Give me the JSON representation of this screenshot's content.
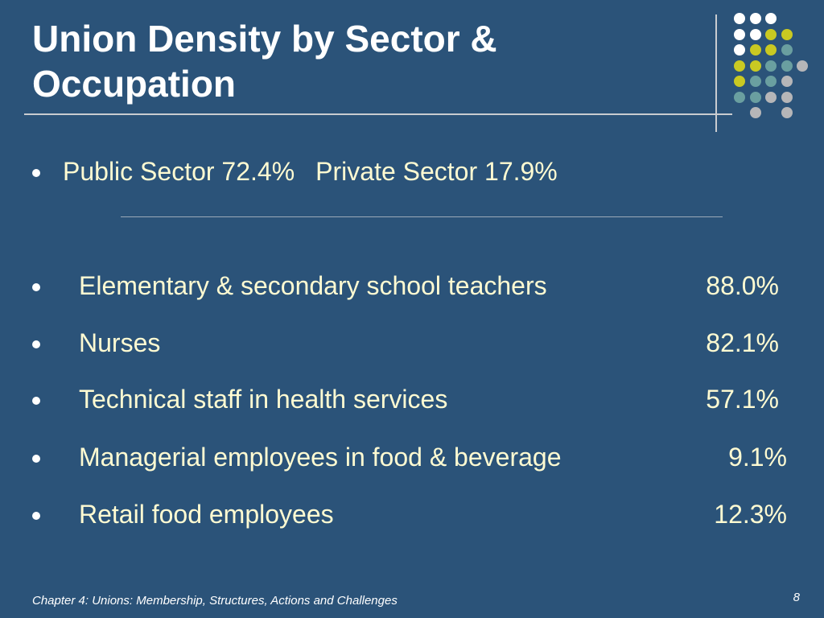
{
  "slide": {
    "title_line1": "Union Density by Sector &",
    "title_line2": "Occupation",
    "sector": {
      "public": "Public Sector 72.4%",
      "private": "Private Sector 17.9%"
    },
    "occupations": [
      {
        "label": "Elementary & secondary school teachers",
        "value": "88.0%"
      },
      {
        "label": "Nurses",
        "value": "82.1%"
      },
      {
        "label": "Technical staff in health services",
        "value": "57.1%"
      },
      {
        "label": "Managerial employees in food & beverage",
        "value": "9.1%"
      },
      {
        "label": "Retail food employees",
        "value": "12.3%"
      }
    ],
    "footer": "Chapter 4: Unions: Membership, Structures, Actions and Challenges",
    "page_number": "8"
  },
  "colors": {
    "background": "#2b5379",
    "title": "#ffffff",
    "body_text": "#fffbd2",
    "dot_white": "#ffffff",
    "dot_yellow": "#c9c922",
    "dot_teal": "#6a9fa0",
    "dot_gray": "#b6b6b8"
  }
}
